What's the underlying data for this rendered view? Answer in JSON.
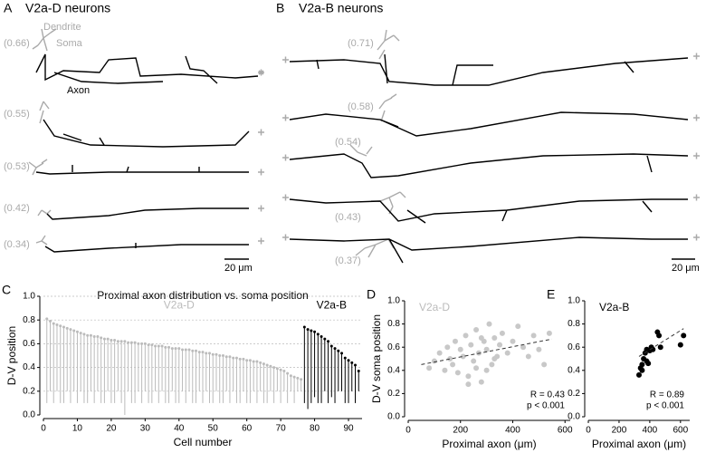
{
  "panels": {
    "A": {
      "letter": "A",
      "title": "V2a-D neurons",
      "dendrite": "Dendrite",
      "soma": "Soma",
      "axon": "Axon",
      "positions": [
        "(0.66)",
        "(0.55)",
        "(0.53)",
        "(0.42)",
        "(0.34)"
      ],
      "scale": "20 μm"
    },
    "B": {
      "letter": "B",
      "title": "V2a-B neurons",
      "positions": [
        "(0.71)",
        "(0.58)",
        "(0.54)",
        "(0.43)",
        "(0.37)"
      ],
      "scale": "20 μm"
    }
  },
  "chart_data": [
    {
      "type": "lollipop",
      "panel": "C",
      "title": "Proximal axon distribution vs. soma position",
      "xlabel": "Cell number",
      "ylabel": "D-V position",
      "xlim": [
        0,
        94
      ],
      "xticks": [
        0,
        10,
        20,
        30,
        40,
        50,
        60,
        70,
        80,
        90
      ],
      "ylim": [
        0,
        1
      ],
      "yticks": [
        {
          "value": 0,
          "label": "0.0"
        },
        {
          "value": 0.2,
          "label": "0.2"
        },
        {
          "value": 0.4,
          "label": "0.4"
        },
        {
          "value": 0.6,
          "label": "0.6"
        },
        {
          "value": 0.8,
          "label": "0.8"
        },
        {
          "value": 1,
          "label": "1.0"
        }
      ],
      "grid": true,
      "series": [
        {
          "name": "V2a-D",
          "color": "#bbbbbb",
          "x": [
            1,
            2,
            3,
            4,
            5,
            6,
            7,
            8,
            9,
            10,
            11,
            12,
            13,
            14,
            15,
            16,
            17,
            18,
            19,
            20,
            21,
            22,
            23,
            24,
            25,
            26,
            27,
            28,
            29,
            30,
            31,
            32,
            33,
            34,
            35,
            36,
            37,
            38,
            39,
            40,
            41,
            42,
            43,
            44,
            45,
            46,
            47,
            48,
            49,
            50,
            51,
            52,
            53,
            54,
            55,
            56,
            57,
            58,
            59,
            60,
            61,
            62,
            63,
            64,
            65,
            66,
            67,
            68,
            69,
            70,
            71,
            72,
            73,
            74,
            75,
            76
          ],
          "values": [
            0.81,
            0.79,
            0.77,
            0.76,
            0.75,
            0.74,
            0.73,
            0.72,
            0.71,
            0.7,
            0.69,
            0.68,
            0.67,
            0.67,
            0.66,
            0.66,
            0.65,
            0.64,
            0.64,
            0.63,
            0.63,
            0.62,
            0.62,
            0.62,
            0.61,
            0.61,
            0.61,
            0.6,
            0.6,
            0.6,
            0.59,
            0.59,
            0.58,
            0.58,
            0.58,
            0.57,
            0.57,
            0.56,
            0.56,
            0.56,
            0.55,
            0.55,
            0.55,
            0.54,
            0.54,
            0.53,
            0.53,
            0.52,
            0.52,
            0.51,
            0.51,
            0.5,
            0.5,
            0.49,
            0.49,
            0.48,
            0.48,
            0.47,
            0.47,
            0.46,
            0.46,
            0.45,
            0.45,
            0.44,
            0.43,
            0.42,
            0.41,
            0.4,
            0.39,
            0.38,
            0.37,
            0.35,
            0.33,
            0.32,
            0.31,
            0.3
          ],
          "low": [
            0.1,
            0.2,
            0.1,
            0.2,
            0.1,
            0.1,
            0.2,
            0.1,
            0.2,
            0.1,
            0.2,
            0.1,
            0.1,
            0.2,
            0.1,
            0.2,
            0.1,
            0.1,
            0.2,
            0.1,
            0.1,
            0.2,
            0.1,
            0.0,
            0.2,
            0.1,
            0.1,
            0.2,
            0.1,
            0.2,
            0.1,
            0.1,
            0.2,
            0.1,
            0.2,
            0.1,
            0.1,
            0.2,
            0.1,
            0.1,
            0.2,
            0.1,
            0.2,
            0.1,
            0.1,
            0.2,
            0.1,
            0.2,
            0.1,
            0.1,
            0.2,
            0.1,
            0.1,
            0.2,
            0.1,
            0.2,
            0.1,
            0.1,
            0.2,
            0.1,
            0.1,
            0.2,
            0.1,
            0.2,
            0.1,
            0.1,
            0.2,
            0.1,
            0.2,
            0.1,
            0.2,
            0.1,
            0.2,
            0.1,
            0.2,
            0.2
          ]
        },
        {
          "name": "V2a-B",
          "color": "#000000",
          "x": [
            77,
            78,
            79,
            80,
            81,
            82,
            83,
            84,
            85,
            86,
            87,
            88,
            89,
            90,
            91,
            92,
            93
          ],
          "values": [
            0.74,
            0.72,
            0.71,
            0.7,
            0.68,
            0.66,
            0.64,
            0.62,
            0.58,
            0.56,
            0.54,
            0.52,
            0.48,
            0.46,
            0.44,
            0.42,
            0.37
          ],
          "low": [
            0.1,
            0.05,
            0.1,
            0.15,
            0.1,
            0.1,
            0.2,
            0.1,
            0.15,
            0.1,
            0.2,
            0.2,
            0.1,
            0.1,
            0.2,
            0.1,
            0.2
          ]
        }
      ]
    },
    {
      "type": "scatter",
      "panel": "D",
      "annotation": "V2a-D",
      "stat_r": "R = 0.43",
      "stat_p": "p < 0.001",
      "xlabel": "Proximal axon (μm)",
      "ylabel": "D-V soma position",
      "color": "#c8c8c8",
      "xlim": [
        0,
        620
      ],
      "xticks": [
        0,
        200,
        400,
        600
      ],
      "ylim": [
        0,
        1
      ],
      "yticks": [
        {
          "value": 0,
          "label": "0.0"
        },
        {
          "value": 0.2,
          "label": "0.2"
        },
        {
          "value": 0.4,
          "label": "0.4"
        },
        {
          "value": 0.6,
          "label": "0.6"
        },
        {
          "value": 0.8,
          "label": "0.8"
        },
        {
          "value": 1,
          "label": "1.0"
        }
      ],
      "x": [
        80,
        100,
        120,
        140,
        150,
        160,
        170,
        180,
        190,
        200,
        210,
        220,
        230,
        240,
        250,
        260,
        270,
        280,
        290,
        300,
        310,
        320,
        330,
        340,
        350,
        360,
        380,
        400,
        420,
        440,
        460,
        480,
        500,
        520,
        540,
        230,
        260,
        300,
        330,
        280
      ],
      "values": [
        0.42,
        0.48,
        0.55,
        0.4,
        0.6,
        0.5,
        0.45,
        0.65,
        0.38,
        0.58,
        0.52,
        0.7,
        0.35,
        0.62,
        0.48,
        0.75,
        0.55,
        0.3,
        0.65,
        0.58,
        0.8,
        0.45,
        0.68,
        0.52,
        0.62,
        0.72,
        0.55,
        0.65,
        0.78,
        0.6,
        0.52,
        0.7,
        0.58,
        0.45,
        0.72,
        0.28,
        0.42,
        0.4,
        0.5,
        0.68
      ],
      "fit": {
        "x": [
          50,
          550
        ],
        "y": [
          0.45,
          0.67
        ]
      }
    },
    {
      "type": "scatter",
      "panel": "E",
      "annotation": "V2a-B",
      "stat_r": "R = 0.89",
      "stat_p": "p < 0.001",
      "xlabel": "Proximal axon (μm)",
      "color": "#000000",
      "xlim": [
        0,
        660
      ],
      "xticks": [
        0,
        200,
        400,
        600
      ],
      "ylim": [
        0,
        1
      ],
      "yticks": [
        {
          "value": 0,
          "label": "0.0"
        },
        {
          "value": 0.2,
          "label": "0.2"
        },
        {
          "value": 0.4,
          "label": "0.4"
        },
        {
          "value": 0.6,
          "label": "0.6"
        },
        {
          "value": 0.8,
          "label": "0.8"
        },
        {
          "value": 1,
          "label": "1.0"
        }
      ],
      "x": [
        330,
        340,
        350,
        360,
        370,
        380,
        380,
        390,
        400,
        410,
        420,
        450,
        460,
        470,
        600,
        620,
        350
      ],
      "values": [
        0.36,
        0.42,
        0.45,
        0.5,
        0.55,
        0.58,
        0.48,
        0.46,
        0.57,
        0.6,
        0.58,
        0.73,
        0.7,
        0.6,
        0.62,
        0.7,
        0.4
      ],
      "fit": {
        "x": [
          330,
          620
        ],
        "y": [
          0.52,
          0.76
        ]
      }
    }
  ]
}
